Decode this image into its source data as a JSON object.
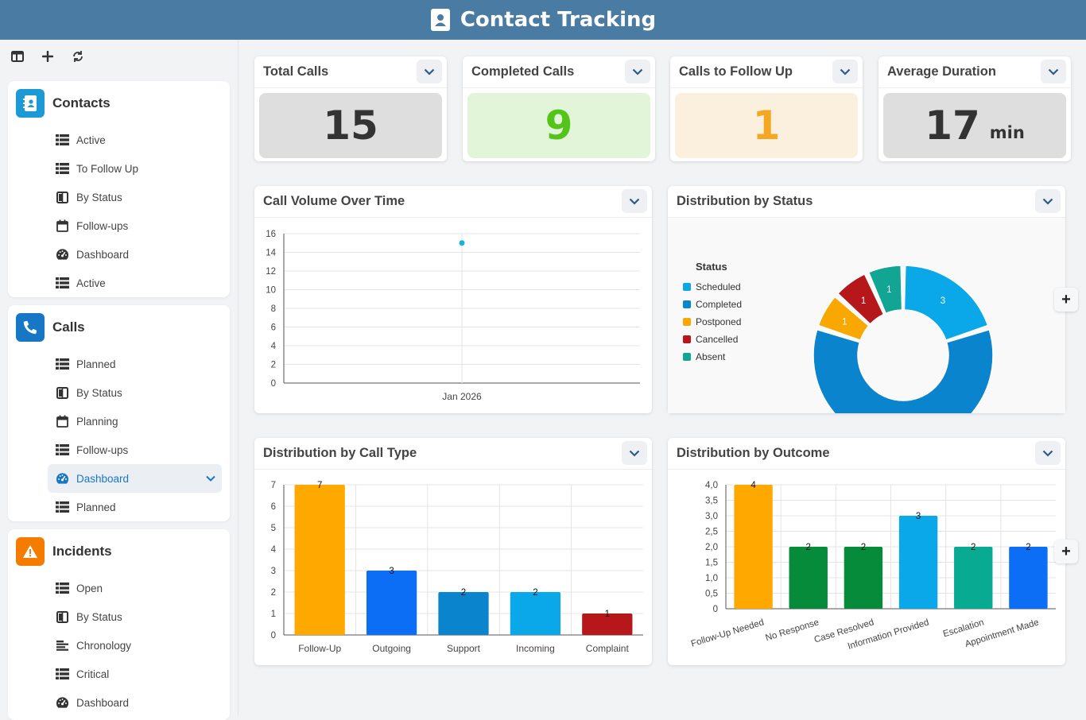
{
  "app": {
    "title": "Contact Tracking"
  },
  "sidebar": {
    "groups": [
      {
        "title": "Contacts",
        "color": "#1b9ad6",
        "items": [
          {
            "label": "Active",
            "icon": "table-icon"
          },
          {
            "label": "To Follow Up",
            "icon": "table-icon"
          },
          {
            "label": "By Status",
            "icon": "kanban-icon"
          },
          {
            "label": "Follow-ups",
            "icon": "calendar-icon"
          },
          {
            "label": "Dashboard",
            "icon": "gauge-icon"
          },
          {
            "label": "Active",
            "icon": "table-icon"
          }
        ]
      },
      {
        "title": "Calls",
        "color": "#1877c5",
        "items": [
          {
            "label": "Planned",
            "icon": "table-icon"
          },
          {
            "label": "By Status",
            "icon": "kanban-icon"
          },
          {
            "label": "Planning",
            "icon": "calendar-icon"
          },
          {
            "label": "Follow-ups",
            "icon": "table-icon"
          },
          {
            "label": "Dashboard",
            "icon": "gauge-icon",
            "active": true
          },
          {
            "label": "Planned",
            "icon": "table-icon"
          }
        ]
      },
      {
        "title": "Incidents",
        "color": "#f57c00",
        "items": [
          {
            "label": "Open",
            "icon": "table-icon"
          },
          {
            "label": "By Status",
            "icon": "kanban-icon"
          },
          {
            "label": "Chronology",
            "icon": "timeline-icon"
          },
          {
            "label": "Critical",
            "icon": "table-icon"
          },
          {
            "label": "Dashboard",
            "icon": "gauge-icon"
          }
        ]
      }
    ]
  },
  "kpis": [
    {
      "title": "Total Calls",
      "value": "15",
      "unit": "",
      "bg": "#dedede",
      "color": "#333333"
    },
    {
      "title": "Completed Calls",
      "value": "9",
      "unit": "",
      "bg": "#e2f5d8",
      "color": "#52c41a"
    },
    {
      "title": "Calls to Follow Up",
      "value": "1",
      "unit": "",
      "bg": "#fbf0de",
      "color": "#f5a623"
    },
    {
      "title": "Average Duration",
      "value": "17",
      "unit": "min",
      "bg": "#dedede",
      "color": "#333333"
    }
  ],
  "charts": {
    "volume_title": "Call Volume Over Time",
    "status_title": "Distribution by Status",
    "calltype_title": "Distribution by Call Type",
    "outcome_title": "Distribution by Outcome"
  },
  "chart_data": [
    {
      "type": "line",
      "title": "Call Volume Over Time",
      "x": [
        "Jan 2026"
      ],
      "values": [
        15
      ],
      "ylim": [
        0,
        16
      ],
      "yticks": [
        "0",
        "2",
        "4",
        "6",
        "8",
        "10",
        "12",
        "14",
        "16"
      ],
      "grid": true
    },
    {
      "type": "pie",
      "title": "Distribution by Status",
      "legend_title": "Status",
      "legend_position": "left",
      "categories": [
        "Scheduled",
        "Completed",
        "Postponed",
        "Cancelled",
        "Absent"
      ],
      "values": [
        3,
        9,
        1,
        1,
        1
      ],
      "colors": [
        "#0aa8e8",
        "#0a84cc",
        "#f8a800",
        "#b5171b",
        "#12a594"
      ]
    },
    {
      "type": "bar",
      "title": "Distribution by Call Type",
      "categories": [
        "Follow-Up",
        "Outgoing",
        "Support",
        "Incoming",
        "Complaint"
      ],
      "values": [
        7,
        3,
        2,
        2,
        1
      ],
      "colors": [
        "#ffa800",
        "#0b6ef4",
        "#0a84cc",
        "#0aa8e8",
        "#b5171b"
      ],
      "ylim": [
        0,
        7
      ],
      "yticks": [
        "0",
        "1",
        "2",
        "3",
        "4",
        "5",
        "6",
        "7"
      ],
      "grid": true
    },
    {
      "type": "bar",
      "title": "Distribution by Outcome",
      "categories": [
        "Follow-Up Needed",
        "No Response",
        "Case Resolved",
        "Information Provided",
        "Escalation",
        "Appointment Made"
      ],
      "values": [
        4,
        2,
        2,
        3,
        2,
        2
      ],
      "colors": [
        "#ffa800",
        "#058b3a",
        "#058b3a",
        "#0aa8e8",
        "#08aa92",
        "#0b6ef4"
      ],
      "ylim": [
        0,
        4
      ],
      "yticks": [
        "0",
        "0,5",
        "1,0",
        "1,5",
        "2,0",
        "2,5",
        "3,0",
        "3,5",
        "4,0"
      ],
      "grid": true
    }
  ]
}
